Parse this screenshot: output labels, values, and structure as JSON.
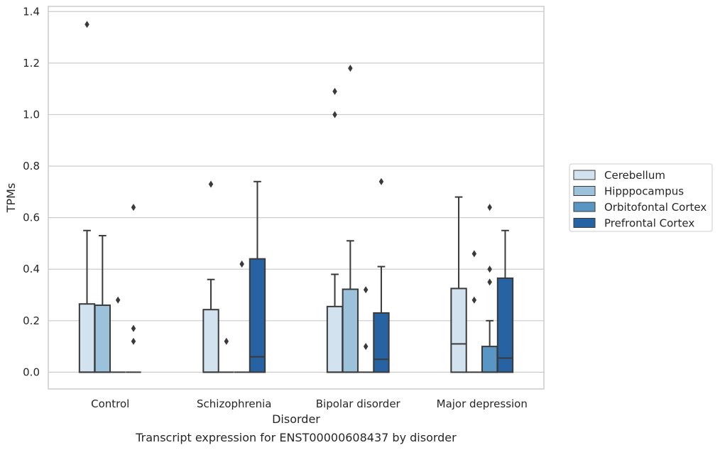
{
  "chart_data": {
    "type": "box",
    "xlabel": "Disorder",
    "ylabel": "TPMs",
    "caption": "Transcript expression for ENST00000608437 by disorder",
    "ylim": [
      -0.065,
      1.42
    ],
    "yticks": [
      "0.0",
      "0.2",
      "0.4",
      "0.6",
      "0.8",
      "1.0",
      "1.2",
      "1.4"
    ],
    "ytick_values": [
      0.0,
      0.2,
      0.4,
      0.6,
      0.8,
      1.0,
      1.2,
      1.4
    ],
    "grid": "horizontal",
    "legend_position": "right",
    "categories": [
      "Control",
      "Schizophrenia",
      "Bipolar disorder",
      "Major depression"
    ],
    "series": [
      {
        "name": "Cerebellum",
        "color": "#d3e2ef",
        "boxes": [
          {
            "category": "Control",
            "q1": 0.0,
            "median": 0.0,
            "q3": 0.265,
            "whisker_low": 0.0,
            "whisker_high": 0.55,
            "outliers": [
              1.35
            ]
          },
          {
            "category": "Schizophrenia",
            "q1": 0.0,
            "median": 0.0,
            "q3": 0.243,
            "whisker_low": 0.0,
            "whisker_high": 0.36,
            "outliers": [
              0.73
            ]
          },
          {
            "category": "Bipolar disorder",
            "q1": 0.0,
            "median": 0.0,
            "q3": 0.255,
            "whisker_low": 0.0,
            "whisker_high": 0.38,
            "outliers": [
              1.0,
              1.09
            ]
          },
          {
            "category": "Major depression",
            "q1": 0.0,
            "median": 0.11,
            "q3": 0.325,
            "whisker_low": 0.0,
            "whisker_high": 0.68,
            "outliers": []
          }
        ]
      },
      {
        "name": "Hipppocampus",
        "color": "#9cc2db",
        "boxes": [
          {
            "category": "Control",
            "q1": 0.0,
            "median": 0.0,
            "q3": 0.26,
            "whisker_low": 0.0,
            "whisker_high": 0.53,
            "outliers": []
          },
          {
            "category": "Schizophrenia",
            "q1": 0.0,
            "median": 0.0,
            "q3": 0.0,
            "whisker_low": 0.0,
            "whisker_high": 0.0,
            "outliers": [
              0.12
            ]
          },
          {
            "category": "Bipolar disorder",
            "q1": 0.0,
            "median": 0.0,
            "q3": 0.322,
            "whisker_low": 0.0,
            "whisker_high": 0.51,
            "outliers": [
              1.18
            ]
          },
          {
            "category": "Major depression",
            "q1": 0.0,
            "median": 0.0,
            "q3": 0.0,
            "whisker_low": 0.0,
            "whisker_high": 0.0,
            "outliers": [
              0.28,
              0.46
            ]
          }
        ]
      },
      {
        "name": "Orbitofontal Cortex",
        "color": "#5a96c4",
        "boxes": [
          {
            "category": "Control",
            "q1": 0.0,
            "median": 0.0,
            "q3": 0.0,
            "whisker_low": 0.0,
            "whisker_high": 0.0,
            "outliers": [
              0.28
            ]
          },
          {
            "category": "Schizophrenia",
            "q1": 0.0,
            "median": 0.0,
            "q3": 0.0,
            "whisker_low": 0.0,
            "whisker_high": 0.0,
            "outliers": [
              0.42
            ]
          },
          {
            "category": "Bipolar disorder",
            "q1": 0.0,
            "median": 0.0,
            "q3": 0.0,
            "whisker_low": 0.0,
            "whisker_high": 0.0,
            "outliers": [
              0.1,
              0.32
            ]
          },
          {
            "category": "Major depression",
            "q1": 0.0,
            "median": 0.0,
            "q3": 0.1,
            "whisker_low": 0.0,
            "whisker_high": 0.2,
            "outliers": [
              0.35,
              0.4,
              0.64
            ]
          }
        ]
      },
      {
        "name": "Prefrontal Cortex",
        "color": "#2763a3",
        "boxes": [
          {
            "category": "Control",
            "q1": 0.0,
            "median": 0.0,
            "q3": 0.0,
            "whisker_low": 0.0,
            "whisker_high": 0.0,
            "outliers": [
              0.12,
              0.17,
              0.64
            ]
          },
          {
            "category": "Schizophrenia",
            "q1": 0.0,
            "median": 0.06,
            "q3": 0.44,
            "whisker_low": 0.0,
            "whisker_high": 0.74,
            "outliers": []
          },
          {
            "category": "Bipolar disorder",
            "q1": 0.0,
            "median": 0.05,
            "q3": 0.23,
            "whisker_low": 0.0,
            "whisker_high": 0.41,
            "outliers": [
              0.74
            ]
          },
          {
            "category": "Major depression",
            "q1": 0.0,
            "median": 0.055,
            "q3": 0.365,
            "whisker_low": 0.0,
            "whisker_high": 0.55,
            "outliers": []
          }
        ]
      }
    ]
  }
}
